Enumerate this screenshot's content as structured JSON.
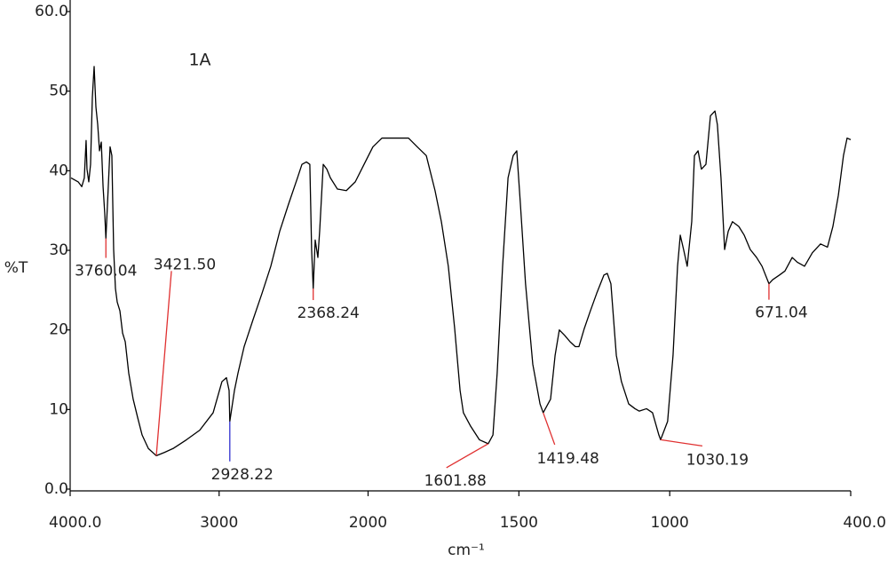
{
  "chart_data": {
    "type": "line",
    "title": "1A",
    "xlabel": "cm⁻¹",
    "ylabel": "%T",
    "color": "#000000",
    "xlim": [
      4000,
      400
    ],
    "x_split": 2000,
    "ylim": [
      0,
      60
    ],
    "xticks": [
      {
        "value": 4000,
        "label": "4000.0"
      },
      3000,
      2000,
      1500,
      1000,
      {
        "value": 400,
        "label": "400.0"
      }
    ],
    "yticks": [
      {
        "value": 0,
        "label": "0.0"
      },
      10,
      20,
      30,
      40,
      50,
      {
        "value": 60,
        "label": "60.0"
      }
    ],
    "x": [
      3994,
      3946,
      3922,
      3905,
      3893,
      3887,
      3875,
      3863,
      3851,
      3839,
      3827,
      3815,
      3803,
      3791,
      3779,
      3768,
      3760.04,
      3744,
      3732,
      3720,
      3708,
      3696,
      3684,
      3666,
      3648,
      3630,
      3607,
      3577,
      3547,
      3517,
      3475,
      3428,
      3421.5,
      3368,
      3309,
      3219,
      3130,
      3040,
      2981,
      2951,
      2933,
      2928.22,
      2897,
      2873,
      2832,
      2772,
      2712,
      2653,
      2593,
      2534,
      2474,
      2444,
      2414,
      2391,
      2379,
      2368.24,
      2355,
      2337,
      2325,
      2301,
      2277,
      2253,
      2206,
      2146,
      2086,
      2027,
      1984,
      1954,
      1925,
      1895,
      1866,
      1837,
      1807,
      1778,
      1757,
      1734,
      1713,
      1695,
      1684,
      1660,
      1631,
      1601.88,
      1586,
      1572,
      1554,
      1536,
      1519,
      1507,
      1495,
      1478,
      1454,
      1430,
      1419.48,
      1395,
      1380,
      1366,
      1348,
      1330,
      1313,
      1301,
      1283,
      1263,
      1242,
      1218,
      1207,
      1195,
      1177,
      1160,
      1136,
      1115,
      1101,
      1077,
      1057,
      1036,
      1030.19,
      1007,
      989,
      974,
      965,
      954,
      942,
      927,
      918,
      906,
      895,
      880,
      865,
      850,
      842,
      830,
      818,
      806,
      792,
      771,
      753,
      733,
      712,
      694,
      671.04,
      659,
      636,
      618,
      594,
      577,
      553,
      527,
      500,
      477,
      459,
      441,
      424,
      412,
      400
    ],
    "values": [
      39.1,
      38.6,
      38.0,
      39.1,
      43.8,
      40.2,
      38.6,
      40.8,
      49.2,
      53.1,
      48.0,
      45.8,
      42.5,
      43.6,
      38.0,
      34.7,
      31.5,
      38.0,
      43.0,
      41.9,
      30.1,
      25.2,
      23.5,
      22.4,
      19.6,
      18.5,
      14.6,
      11.3,
      9.0,
      6.8,
      5.1,
      4.3,
      4.2,
      4.6,
      5.1,
      6.2,
      7.4,
      9.6,
      13.5,
      14.0,
      12.4,
      8.5,
      12.4,
      14.6,
      17.9,
      21.3,
      24.6,
      28.0,
      32.4,
      35.8,
      39.1,
      40.8,
      41.1,
      40.8,
      30.1,
      25.2,
      31.3,
      29.1,
      32.4,
      40.8,
      40.2,
      39.1,
      37.7,
      37.5,
      38.6,
      40.8,
      43.0,
      44.1,
      44.1,
      44.1,
      44.1,
      43.0,
      41.9,
      37.5,
      33.6,
      28.0,
      20.2,
      12.4,
      9.6,
      7.9,
      6.2,
      5.7,
      6.8,
      14.6,
      28.0,
      39.1,
      41.9,
      42.5,
      35.8,
      25.8,
      15.7,
      10.7,
      9.6,
      11.3,
      16.8,
      20.0,
      19.3,
      18.5,
      17.9,
      17.9,
      20.2,
      22.4,
      24.6,
      26.9,
      27.1,
      25.8,
      16.8,
      13.5,
      10.7,
      10.1,
      9.8,
      10.1,
      9.6,
      6.8,
      6.2,
      8.5,
      16.8,
      28.0,
      31.9,
      30.1,
      28.0,
      33.6,
      41.9,
      42.5,
      40.2,
      40.8,
      46.9,
      47.5,
      45.8,
      39.1,
      30.1,
      32.4,
      33.6,
      33.0,
      31.9,
      30.1,
      29.1,
      28.0,
      25.8,
      26.3,
      26.9,
      27.4,
      29.1,
      28.5,
      28.0,
      29.7,
      30.8,
      30.4,
      33.0,
      36.9,
      41.9,
      44.1,
      43.9
    ],
    "annotations": [
      {
        "label": "3760.04",
        "x": 3760.04,
        "color": "#e03030"
      },
      {
        "label": "3421.50",
        "x": 3421.5,
        "color": "#e03030"
      },
      {
        "label": "2928.22",
        "x": 2928.22,
        "color": "#3030d0"
      },
      {
        "label": "2368.24",
        "x": 2368.24,
        "color": "#e03030"
      },
      {
        "label": "1601.88",
        "x": 1601.88,
        "color": "#e03030"
      },
      {
        "label": "1419.48",
        "x": 1419.48,
        "color": "#e03030"
      },
      {
        "label": "1030.19",
        "x": 1030.19,
        "color": "#e03030"
      },
      {
        "label": "671.04",
        "x": 671.04,
        "color": "#e03030"
      }
    ]
  }
}
